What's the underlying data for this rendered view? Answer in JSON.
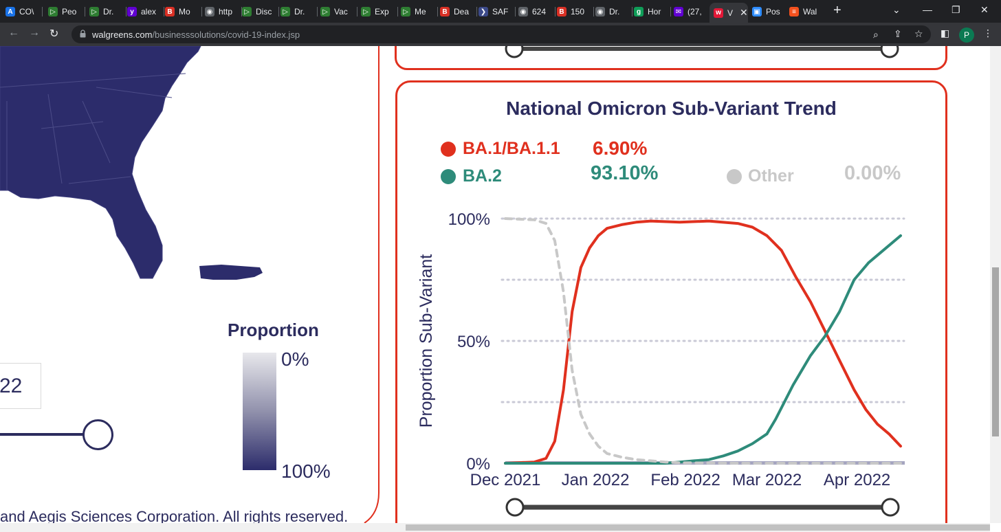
{
  "browser": {
    "tabs": [
      {
        "label": "CO\\",
        "color": "#1a73e8",
        "glyph": "A"
      },
      {
        "label": "Peo",
        "color": "#2e7d32",
        "glyph": "▷"
      },
      {
        "label": "Dr.",
        "color": "#2e7d32",
        "glyph": "▷"
      },
      {
        "label": "alex",
        "color": "#6001d2",
        "glyph": "y"
      },
      {
        "label": "Mo",
        "color": "#d93025",
        "glyph": "B"
      },
      {
        "label": "http",
        "color": "#5f6368",
        "glyph": "◉"
      },
      {
        "label": "Disc",
        "color": "#2e7d32",
        "glyph": "▷"
      },
      {
        "label": "Dr.",
        "color": "#2e7d32",
        "glyph": "▷"
      },
      {
        "label": "Vac",
        "color": "#2e7d32",
        "glyph": "▷"
      },
      {
        "label": "Exp",
        "color": "#2e7d32",
        "glyph": "▷"
      },
      {
        "label": "Me",
        "color": "#2e7d32",
        "glyph": "▷"
      },
      {
        "label": "Dea",
        "color": "#d93025",
        "glyph": "B"
      },
      {
        "label": "SAF",
        "color": "#3c4a8a",
        "glyph": "❯"
      },
      {
        "label": "624",
        "color": "#5f6368",
        "glyph": "◉"
      },
      {
        "label": "150",
        "color": "#d93025",
        "glyph": "B"
      },
      {
        "label": "Dr.",
        "color": "#5f6368",
        "glyph": "◉"
      },
      {
        "label": "Hor",
        "color": "#0f9d58",
        "glyph": "g"
      },
      {
        "label": "(27,",
        "color": "#6001d2",
        "glyph": "✉"
      }
    ],
    "active_tab": {
      "label": "V",
      "glyph": "w"
    },
    "tabs_after": [
      {
        "label": "Pos",
        "color": "#2d8cff",
        "glyph": "▣"
      },
      {
        "label": "Wal",
        "color": "#f4511e",
        "glyph": "≡"
      }
    ],
    "url_host": "walgreens.com",
    "url_path": "/businesssolutions/covid-19-index.jsp",
    "profile_initial": "P"
  },
  "map_panel": {
    "legend_title": "Proportion",
    "legend_min": "0%",
    "legend_max": "100%",
    "date_value": "22",
    "footer": "and Aegis Sciences Corporation.  All rights reserved."
  },
  "trend": {
    "title": "National Omicron Sub-Variant Trend",
    "legend": [
      {
        "name": "BA.1/BA.1.1",
        "value": "6.90%",
        "color": "#e0301e"
      },
      {
        "name": "BA.2",
        "value": "93.10%",
        "color": "#2e8b7a"
      },
      {
        "name": "Other",
        "value": "0.00%",
        "color": "#c8c8c8"
      }
    ]
  },
  "chart_data": {
    "type": "line",
    "title": "National Omicron Sub-Variant Trend",
    "xlabel": "",
    "ylabel": "Proportion Sub-Variant",
    "ylim": [
      0,
      100
    ],
    "yticks": [
      "0%",
      "50%",
      "100%"
    ],
    "xticks": [
      "Dec 2021",
      "Jan 2022",
      "Feb 2022",
      "Mar 2022",
      "Apr 2022"
    ],
    "xtick_days": [
      0,
      31,
      62,
      90,
      121
    ],
    "xlim_days": [
      0,
      136
    ],
    "series": [
      {
        "name": "BA.1/BA.1.1",
        "color": "#e0301e",
        "dash": false,
        "x": [
          0,
          10,
          14,
          17,
          20,
          23,
          26,
          29,
          32,
          35,
          40,
          45,
          50,
          60,
          70,
          80,
          85,
          90,
          95,
          100,
          105,
          110,
          115,
          120,
          124,
          128,
          132,
          136
        ],
        "y": [
          0,
          0.5,
          2,
          9,
          30,
          62,
          80,
          88,
          93,
          96,
          97.5,
          98.5,
          99,
          98.5,
          99,
          98,
          96.5,
          93,
          87,
          76,
          66,
          54,
          42,
          30,
          22,
          16,
          12,
          7
        ]
      },
      {
        "name": "BA.2",
        "color": "#2e8b7a",
        "dash": false,
        "x": [
          0,
          55,
          60,
          65,
          70,
          75,
          80,
          85,
          90,
          93,
          96,
          99,
          102,
          105,
          110,
          115,
          120,
          125,
          130,
          136
        ],
        "y": [
          0,
          0,
          0.5,
          1,
          1.5,
          3,
          5,
          8,
          12,
          18,
          25,
          32,
          38,
          44,
          52,
          62,
          75,
          82,
          87,
          93
        ]
      },
      {
        "name": "Other",
        "color": "#c8c8c8",
        "dash": true,
        "x": [
          0,
          10,
          14,
          17,
          20,
          23,
          26,
          29,
          32,
          35,
          40,
          45,
          50,
          55,
          60,
          70,
          80,
          90,
          100,
          136
        ],
        "y": [
          100,
          99.5,
          98,
          91,
          70,
          38,
          20,
          12,
          7,
          4,
          2.5,
          1.5,
          1,
          0.5,
          0.2,
          0.1,
          0,
          0,
          0,
          0
        ]
      }
    ]
  }
}
